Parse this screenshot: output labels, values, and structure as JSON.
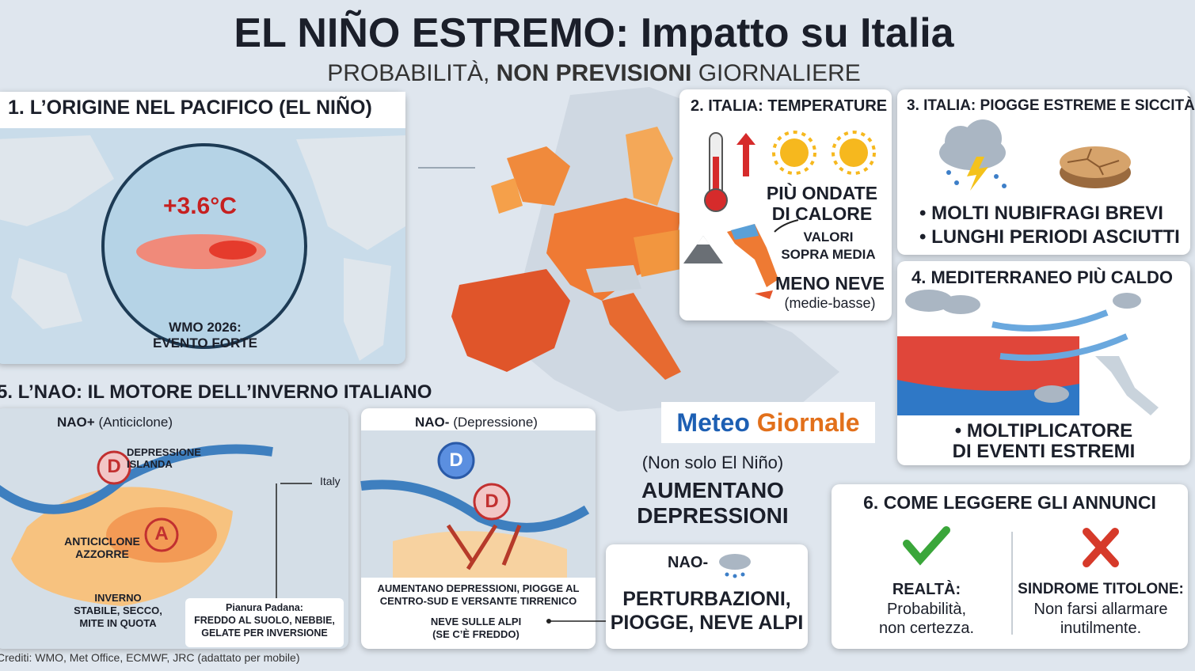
{
  "header": {
    "title": "EL NIÑO ESTREMO: Impatto su Italia",
    "subtitle": [
      "PROBABILITÀ,",
      "NON PREVISIONI",
      "GIORNALIERE"
    ]
  },
  "panel1": {
    "title": "1. L’ORIGINE NEL PACIFICO (EL NIÑO)",
    "anomaly": "+3.6°C",
    "note": [
      "WMO 2026:",
      "EVENTO FORTE"
    ]
  },
  "panel2": {
    "title": "2. ITALIA: TEMPERATURE",
    "heat": [
      "PIÙ ONDATE",
      "DI CALORE"
    ],
    "above": [
      "VALORI",
      "SOPRA MEDIA"
    ],
    "snow": "MENO NEVE",
    "snow_note": "(medie-basse)"
  },
  "panel3": {
    "title": "3. ITALIA: PIOGGE ESTREME E SICCITÀ",
    "bullets": [
      "• MOLTI NUBIFRAGI BREVI",
      "• LUNGHI PERIODI ASCIUTTI"
    ]
  },
  "panel4": {
    "title": "4. MEDITERRANEO PIÙ CALDO",
    "bullet": [
      "• MOLTIPLICATORE",
      "DI EVENTI ESTREMI"
    ]
  },
  "panel5": {
    "title": "5. L’NAO: IL MOTORE DELL’INVERNO ITALIANO",
    "nao_plus": {
      "label": "NAO+",
      "sub": "(Anticiclone)",
      "low": "D",
      "low_label": [
        "DEPRESSIONE",
        "ISLANDA"
      ],
      "high": "A",
      "high_label": [
        "ANTICICLONE",
        "AZZORRE"
      ],
      "italy": "Italy",
      "winter": [
        "INVERNO",
        "STABILE, SECCO,",
        "MITE IN QUOTA"
      ],
      "padana": [
        "Pianura Padana:",
        "FREDDO AL SUOLO, NEBBIE,",
        "GELATE PER INVERSIONE"
      ]
    },
    "nao_minus": {
      "label": "NAO-",
      "sub": "(Depressione)",
      "lows": [
        "D",
        "D"
      ],
      "effects": [
        "AUMENTANO DEPRESSIONI, PIOGGE AL",
        "CENTRO-SUD E VERSANTE TIRRENICO"
      ],
      "snow": [
        "NEVE SULLE ALPI",
        "(SE C’È FREDDO)"
      ]
    }
  },
  "center": {
    "logo": [
      "Meteo",
      "Giornale"
    ],
    "note": "(Non solo El Niño)",
    "headline": [
      "AUMENTANO",
      "DEPRESSIONI"
    ],
    "box_label": "NAO-",
    "box_text": [
      "PERTURBAZIONI,",
      "PIOGGE, NEVE ALPI"
    ]
  },
  "panel6": {
    "title": "6. COME LEGGERE GLI ANNUNCI",
    "reality_title": "REALTÀ:",
    "reality_text": [
      "Probabilità,",
      "non certezza."
    ],
    "syndrome_title": "SINDROME TITOLONE:",
    "syndrome_text": [
      "Non farsi allarmare",
      "inutilmente."
    ]
  },
  "credits": "Crediti: WMO, Met Office, ECMWF, JRC (adattato per mobile)"
}
